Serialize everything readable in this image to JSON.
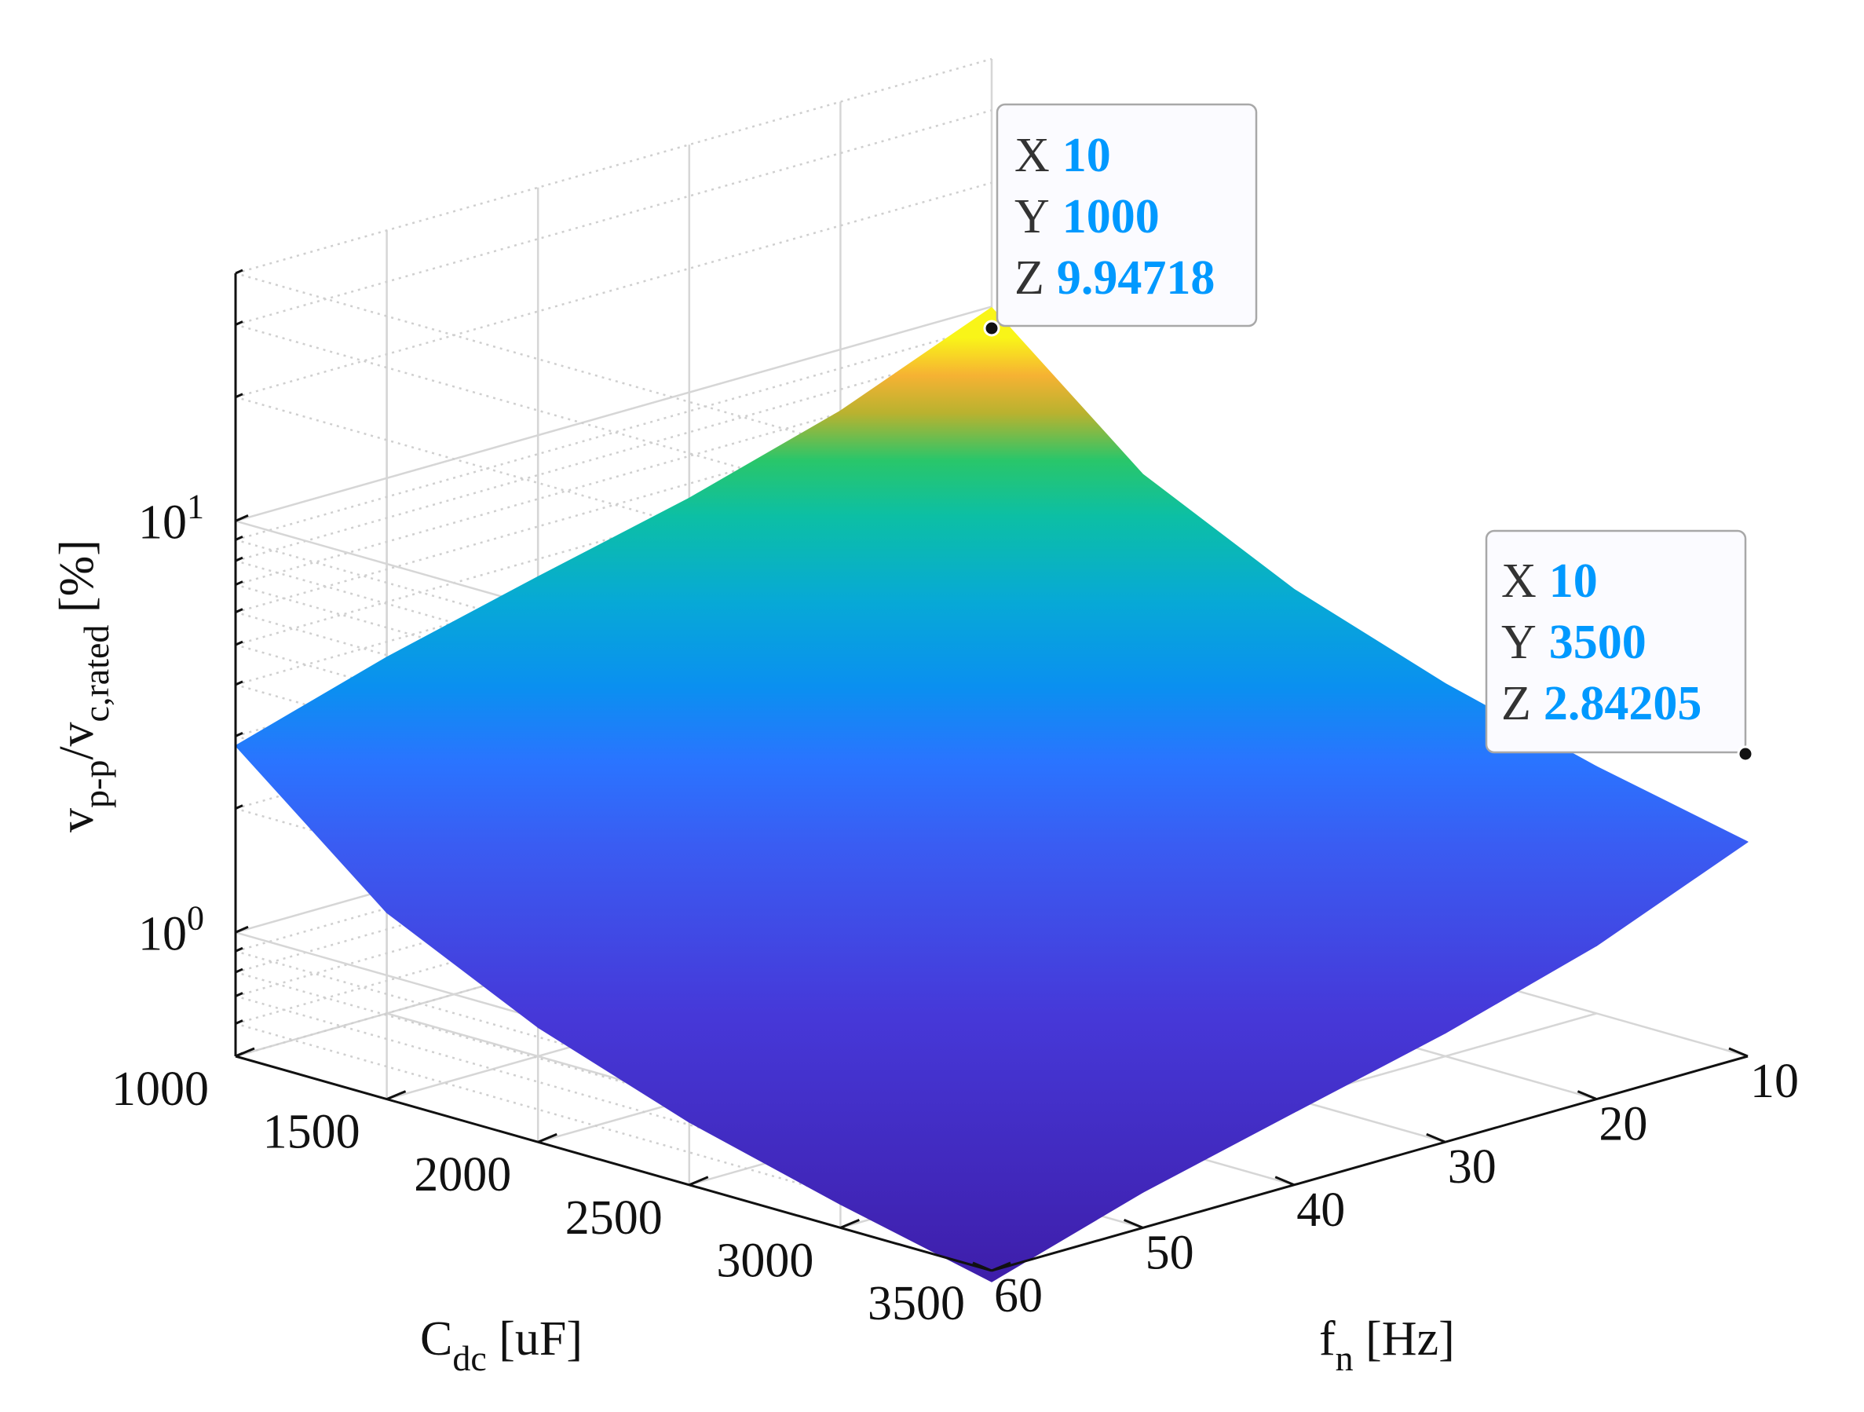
{
  "chart_data": {
    "type": "surface",
    "x": [
      10,
      20,
      30,
      40,
      50,
      60
    ],
    "y": [
      1000,
      1500,
      2000,
      2500,
      3000,
      3500
    ],
    "z": [
      [
        9.94718,
        7.09,
        5.53,
        4.53,
        3.67,
        2.84205
      ],
      [
        4.97,
        3.55,
        2.76,
        2.26,
        1.84,
        1.42
      ],
      [
        3.32,
        2.37,
        1.84,
        1.51,
        1.23,
        0.95
      ],
      [
        2.49,
        1.78,
        1.38,
        1.13,
        0.92,
        0.71
      ],
      [
        1.99,
        1.42,
        1.11,
        0.9,
        0.74,
        0.57
      ],
      [
        1.66,
        1.18,
        0.92,
        0.75,
        0.61,
        0.47
      ]
    ],
    "z_scale": "log",
    "zlim": [
      0.5,
      40
    ],
    "xlim": [
      10,
      60
    ],
    "ylim": [
      1000,
      3500
    ],
    "x_ticks": [
      "10",
      "20",
      "30",
      "40",
      "50",
      "60"
    ],
    "y_ticks": [
      "1000",
      "1500",
      "2000",
      "2500",
      "3000",
      "3500"
    ],
    "z_ticks": [
      {
        "value": 1,
        "base": "10",
        "exp": "0"
      },
      {
        "value": 10,
        "base": "10",
        "exp": "1"
      }
    ],
    "xlabel": {
      "main": "f",
      "sub": "n",
      "rest": " [Hz]"
    },
    "ylabel": {
      "main": "C",
      "sub": "dc",
      "rest": " [uF]"
    },
    "zlabel": {
      "v1": "v",
      "sub1": "p-p",
      "slash": "/v",
      "sub2": "c,rated",
      "rest": " [%]"
    },
    "grid": true,
    "colormap": "parula",
    "datatips": [
      {
        "x_key": "X",
        "x": "10",
        "y_key": "Y",
        "y": "1000",
        "z_key": "Z",
        "z": "9.94718"
      },
      {
        "x_key": "X",
        "x": "10",
        "y_key": "Y",
        "y": "3500",
        "z_key": "Z",
        "z": "2.84205"
      }
    ]
  }
}
